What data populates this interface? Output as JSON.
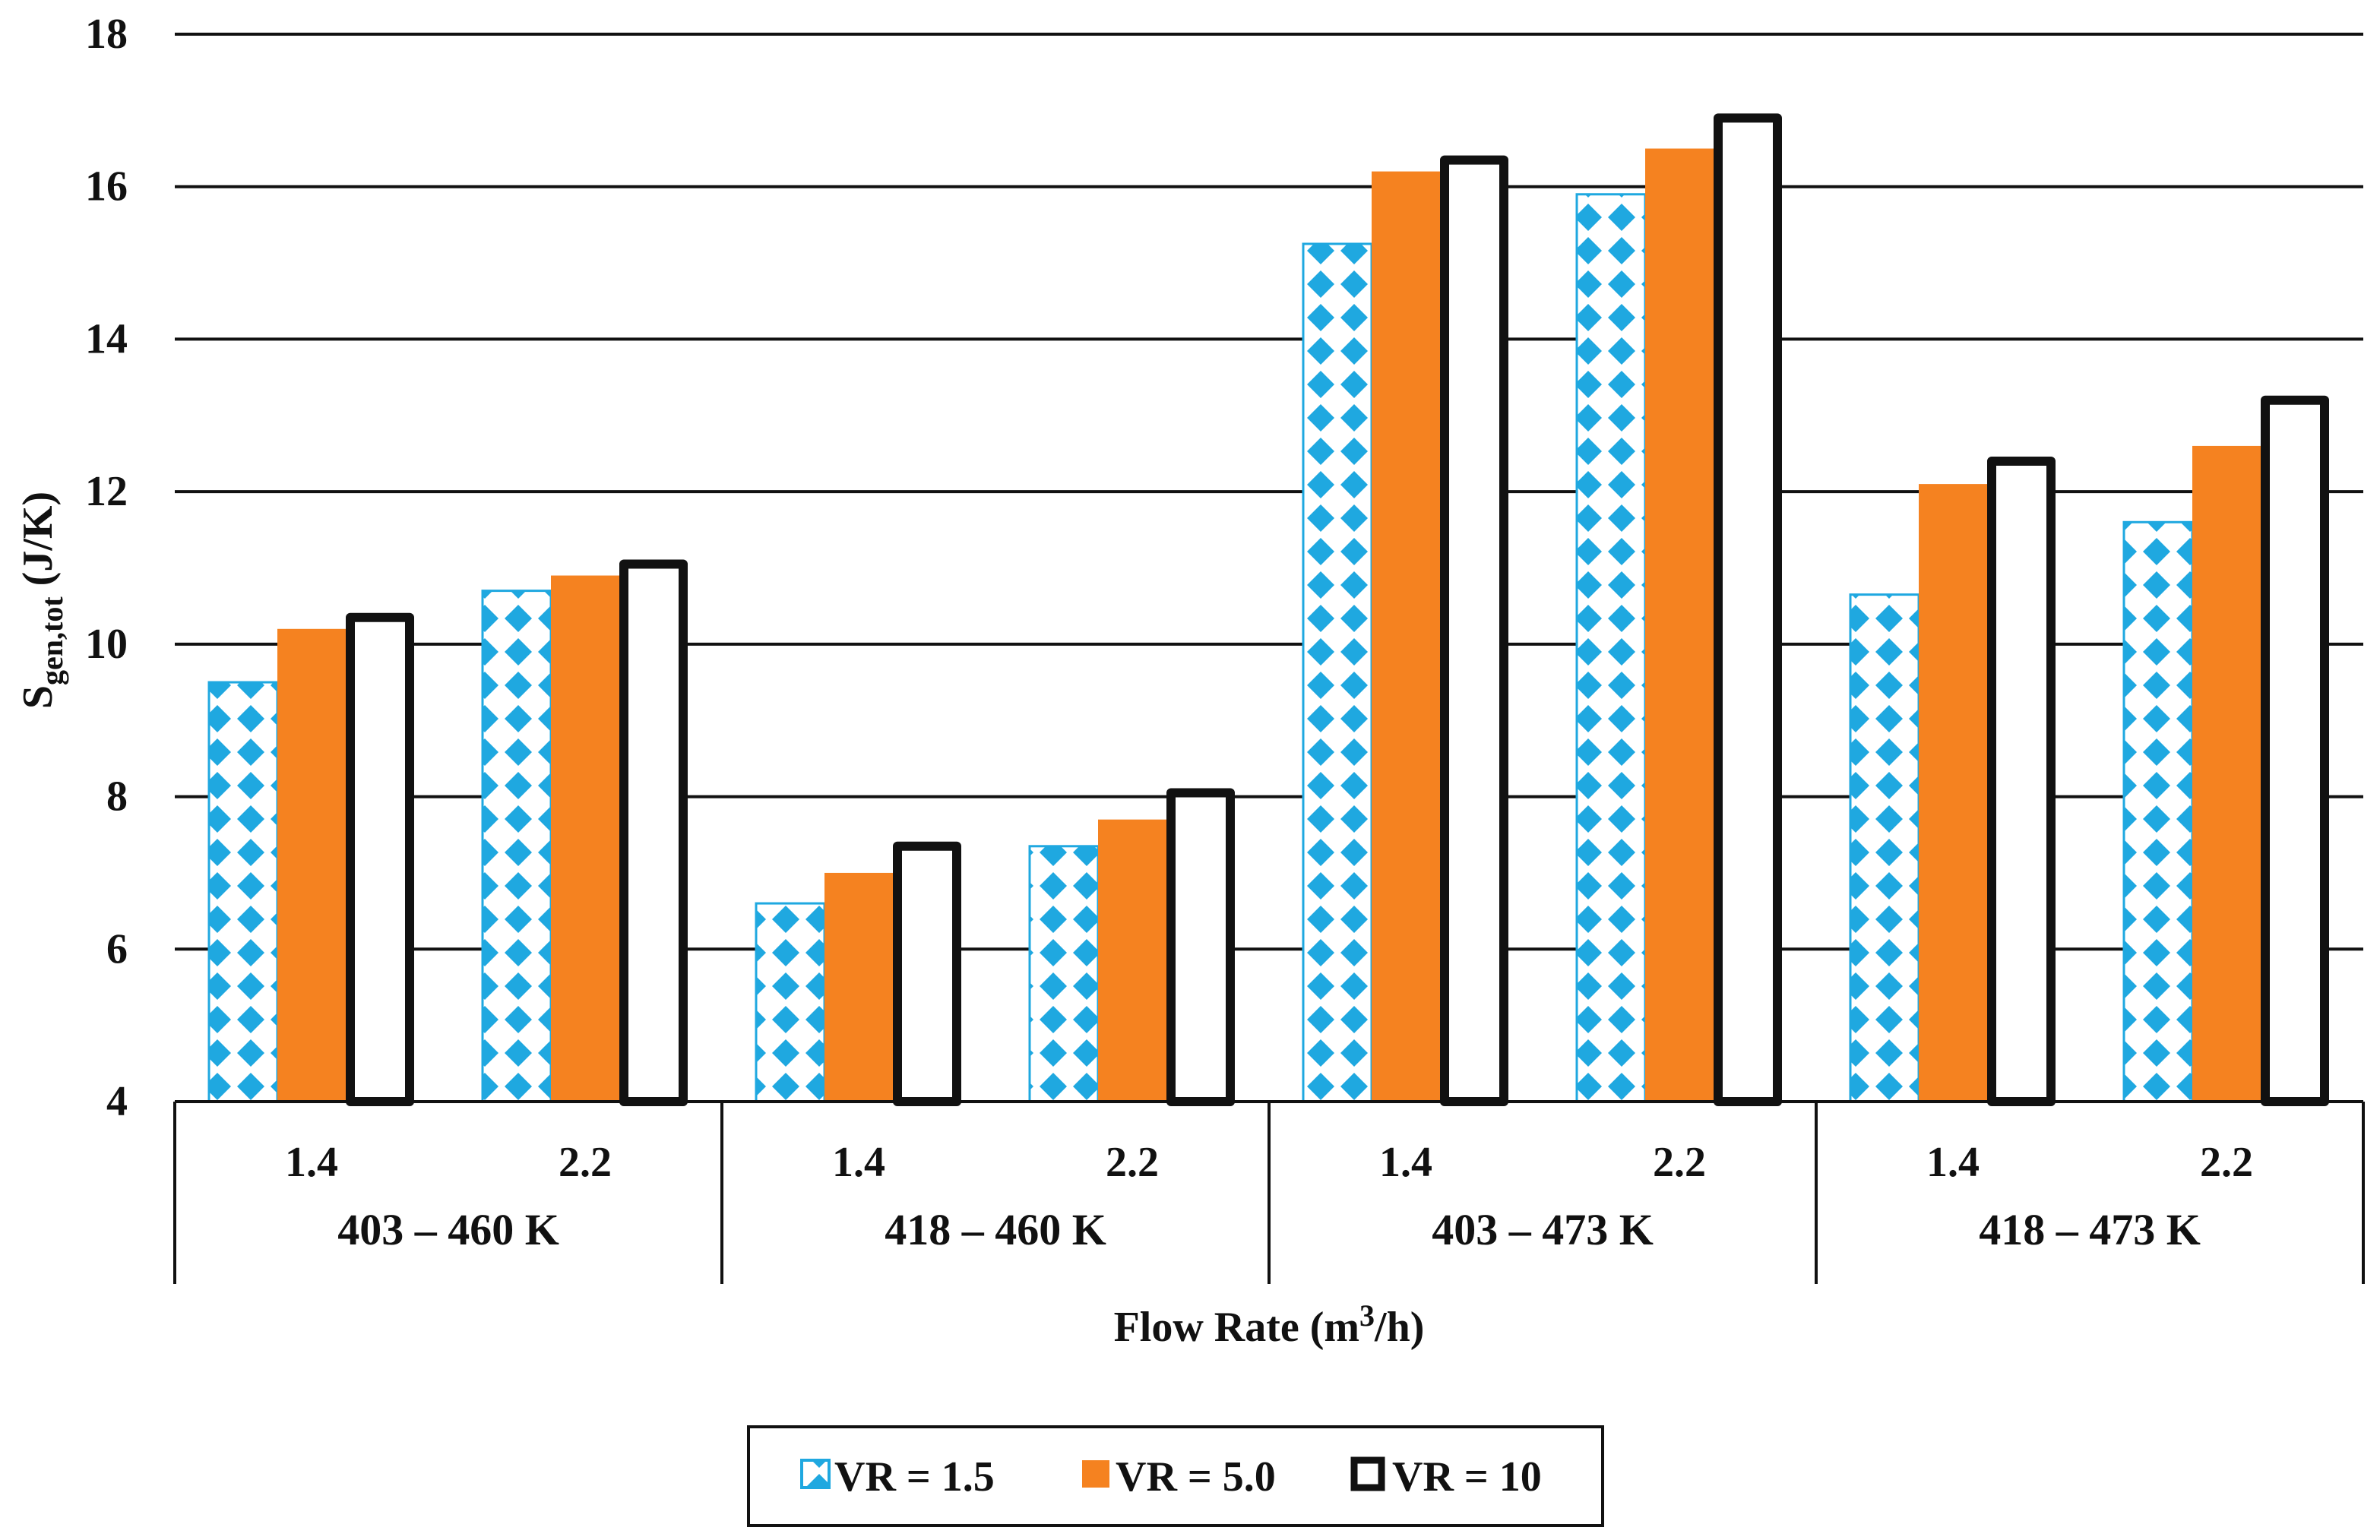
{
  "chart_data": {
    "type": "bar",
    "title": "",
    "ylabel_main": "S",
    "ylabel_sub": "gen,tot",
    "ylabel_unit": " (J/K)",
    "xlabel_prefix": "Flow Rate (m",
    "xlabel_sup": "3",
    "xlabel_suffix": "/h)",
    "ylim": [
      4,
      18
    ],
    "yticks": [
      "4",
      "6",
      "8",
      "10",
      "12",
      "14",
      "16",
      "18"
    ],
    "grid": true,
    "legend_position": "bottom",
    "groups": [
      {
        "label": "403 – 460 K",
        "categories": [
          "1.4",
          "2.2"
        ]
      },
      {
        "label": "418 – 460 K",
        "categories": [
          "1.4",
          "2.2"
        ]
      },
      {
        "label": "403 – 473 K",
        "categories": [
          "1.4",
          "2.2"
        ]
      },
      {
        "label": "418 – 473 K",
        "categories": [
          "1.4",
          "2.2"
        ]
      }
    ],
    "series": [
      {
        "name": "VR = 1.5",
        "style": "pattern",
        "color": "#1fa8e0",
        "values": [
          9.5,
          10.7,
          6.6,
          7.35,
          15.25,
          15.9,
          10.65,
          11.6
        ]
      },
      {
        "name": "VR = 5.0",
        "style": "solid",
        "color": "#f58220",
        "values": [
          10.2,
          10.9,
          7.0,
          7.7,
          16.2,
          16.5,
          12.1,
          12.6
        ]
      },
      {
        "name": "VR = 10",
        "style": "outline",
        "color": "#111111",
        "values": [
          10.35,
          11.05,
          7.35,
          8.05,
          16.35,
          16.9,
          12.4,
          13.2
        ]
      }
    ]
  }
}
